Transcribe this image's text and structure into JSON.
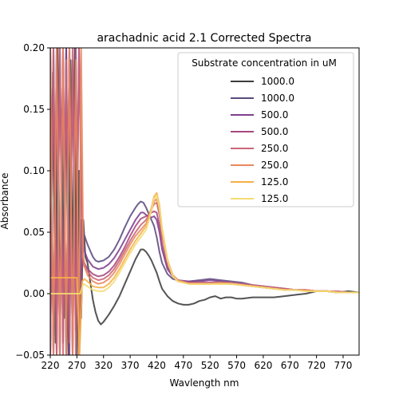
{
  "chart_data": {
    "type": "line",
    "title": "arachadnic acid 2.1 Corrected Spectra",
    "xlabel": "Wavlength nm",
    "ylabel": "Absorbance",
    "xlim": [
      220,
      800
    ],
    "ylim": [
      -0.05,
      0.2
    ],
    "xticks": [
      220,
      270,
      320,
      370,
      420,
      470,
      520,
      570,
      620,
      670,
      720,
      770
    ],
    "yticks": [
      -0.05,
      0.0,
      0.05,
      0.1,
      0.15,
      0.2
    ],
    "ytick_labels": [
      "−0.05",
      "0.00",
      "0.05",
      "0.10",
      "0.15",
      "0.20"
    ],
    "grid": false,
    "legend": {
      "title": "Substrate concentration in uM",
      "placement": "top-right"
    },
    "series": [
      {
        "name": "1000.0",
        "color": "#3c3c3c",
        "x": [
          220,
          225,
          230,
          234,
          238,
          242,
          246,
          250,
          254,
          258,
          262,
          266,
          270,
          274,
          278,
          282,
          286,
          290,
          295,
          300,
          305,
          310,
          315,
          320,
          330,
          340,
          350,
          360,
          370,
          380,
          390,
          395,
          400,
          405,
          410,
          415,
          420,
          425,
          430,
          440,
          450,
          460,
          470,
          480,
          490,
          500,
          510,
          520,
          530,
          540,
          550,
          560,
          570,
          580,
          600,
          620,
          640,
          660,
          680,
          700,
          720,
          740,
          760,
          780,
          800
        ],
        "y": [
          -0.05,
          0.18,
          -0.04,
          0.2,
          -0.05,
          0.15,
          -0.02,
          0.2,
          -0.05,
          0.19,
          -0.01,
          0.2,
          -0.05,
          0.1,
          -0.02,
          0.06,
          0.03,
          0.025,
          0.01,
          -0.005,
          -0.015,
          -0.022,
          -0.025,
          -0.023,
          -0.017,
          -0.01,
          -0.002,
          0.008,
          0.018,
          0.028,
          0.036,
          0.036,
          0.034,
          0.031,
          0.027,
          0.022,
          0.017,
          0.01,
          0.004,
          -0.002,
          -0.006,
          -0.008,
          -0.009,
          -0.009,
          -0.008,
          -0.006,
          -0.005,
          -0.003,
          -0.002,
          -0.004,
          -0.003,
          -0.003,
          -0.004,
          -0.004,
          -0.003,
          -0.003,
          -0.003,
          -0.002,
          -0.001,
          0.0,
          0.002,
          0.002,
          0.001,
          0.002,
          0.001
        ]
      },
      {
        "name": "1000.0",
        "color": "#5c4a7e",
        "x": [
          220,
          226,
          232,
          238,
          244,
          250,
          256,
          262,
          268,
          274,
          278,
          282,
          286,
          290,
          295,
          300,
          305,
          310,
          320,
          330,
          340,
          350,
          360,
          370,
          380,
          385,
          390,
          395,
          400,
          405,
          410,
          415,
          420,
          425,
          430,
          440,
          450,
          460,
          470,
          480,
          500,
          520,
          540,
          560,
          580,
          600,
          620,
          640,
          660,
          680,
          700,
          720,
          740,
          760,
          780,
          800
        ],
        "y": [
          0.2,
          -0.05,
          0.2,
          -0.05,
          0.2,
          -0.05,
          0.2,
          -0.05,
          0.19,
          -0.04,
          0.06,
          0.05,
          0.045,
          0.04,
          0.035,
          0.03,
          0.027,
          0.026,
          0.027,
          0.03,
          0.036,
          0.044,
          0.054,
          0.063,
          0.07,
          0.073,
          0.075,
          0.074,
          0.07,
          0.065,
          0.06,
          0.055,
          0.046,
          0.034,
          0.025,
          0.016,
          0.012,
          0.011,
          0.01,
          0.01,
          0.011,
          0.012,
          0.011,
          0.01,
          0.009,
          0.007,
          0.006,
          0.005,
          0.004,
          0.003,
          0.003,
          0.002,
          0.002,
          0.001,
          0.001,
          0.001
        ]
      },
      {
        "name": "500.0",
        "color": "#7e3f8f",
        "x": [
          220,
          226,
          232,
          238,
          244,
          250,
          256,
          262,
          268,
          274,
          280,
          284,
          290,
          300,
          310,
          320,
          330,
          340,
          350,
          360,
          370,
          380,
          385,
          390,
          395,
          400,
          405,
          410,
          415,
          420,
          425,
          430,
          440,
          450,
          460,
          480,
          500,
          520,
          540,
          560,
          580,
          600,
          620,
          640,
          660,
          680,
          700,
          720,
          740,
          760,
          780,
          800
        ],
        "y": [
          -0.05,
          0.2,
          -0.05,
          0.2,
          -0.04,
          0.2,
          -0.05,
          0.19,
          -0.03,
          0.2,
          0.05,
          0.035,
          0.028,
          0.022,
          0.02,
          0.021,
          0.024,
          0.029,
          0.036,
          0.044,
          0.052,
          0.06,
          0.063,
          0.066,
          0.066,
          0.064,
          0.063,
          0.062,
          0.063,
          0.06,
          0.05,
          0.036,
          0.02,
          0.014,
          0.011,
          0.01,
          0.01,
          0.011,
          0.01,
          0.009,
          0.008,
          0.007,
          0.006,
          0.005,
          0.004,
          0.003,
          0.003,
          0.002,
          0.002,
          0.001,
          0.001,
          0.001
        ]
      },
      {
        "name": "500.0",
        "color": "#a6487e",
        "x": [
          220,
          226,
          232,
          238,
          244,
          250,
          256,
          262,
          268,
          274,
          280,
          284,
          290,
          300,
          310,
          320,
          330,
          340,
          350,
          360,
          370,
          380,
          390,
          395,
          400,
          405,
          410,
          415,
          420,
          425,
          430,
          440,
          450,
          460,
          480,
          500,
          520,
          540,
          560,
          580,
          600,
          620,
          640,
          660,
          680,
          700,
          720,
          740,
          760,
          780,
          800
        ],
        "y": [
          0.2,
          -0.05,
          0.18,
          -0.05,
          0.2,
          -0.05,
          0.2,
          -0.05,
          0.2,
          -0.05,
          0.03,
          0.025,
          0.02,
          0.016,
          0.014,
          0.015,
          0.018,
          0.023,
          0.03,
          0.038,
          0.047,
          0.055,
          0.061,
          0.062,
          0.063,
          0.064,
          0.066,
          0.067,
          0.066,
          0.055,
          0.04,
          0.022,
          0.014,
          0.01,
          0.009,
          0.009,
          0.009,
          0.009,
          0.008,
          0.007,
          0.006,
          0.005,
          0.004,
          0.004,
          0.003,
          0.003,
          0.002,
          0.002,
          0.001,
          0.001,
          0.001
        ]
      },
      {
        "name": "250.0",
        "color": "#cc6479",
        "x": [
          220,
          226,
          232,
          238,
          244,
          250,
          256,
          262,
          268,
          274,
          280,
          284,
          290,
          300,
          310,
          320,
          330,
          340,
          350,
          360,
          370,
          380,
          390,
          400,
          405,
          410,
          415,
          420,
          425,
          430,
          440,
          450,
          460,
          480,
          500,
          520,
          540,
          560,
          580,
          600,
          620,
          640,
          660,
          680,
          700,
          720,
          740,
          760,
          780,
          800
        ],
        "y": [
          -0.05,
          0.2,
          -0.05,
          0.2,
          -0.05,
          0.19,
          -0.04,
          0.2,
          -0.05,
          0.2,
          0.03,
          0.022,
          0.018,
          0.013,
          0.011,
          0.012,
          0.015,
          0.02,
          0.027,
          0.035,
          0.043,
          0.05,
          0.056,
          0.06,
          0.064,
          0.069,
          0.073,
          0.074,
          0.064,
          0.048,
          0.026,
          0.015,
          0.011,
          0.009,
          0.009,
          0.009,
          0.009,
          0.009,
          0.008,
          0.007,
          0.006,
          0.005,
          0.004,
          0.003,
          0.003,
          0.002,
          0.002,
          0.002,
          0.001,
          0.001
        ]
      },
      {
        "name": "250.0",
        "color": "#e8875e",
        "x": [
          220,
          226,
          232,
          238,
          244,
          250,
          256,
          262,
          268,
          274,
          278,
          282,
          286,
          290,
          300,
          310,
          320,
          330,
          340,
          350,
          360,
          370,
          380,
          390,
          400,
          405,
          410,
          415,
          420,
          425,
          430,
          440,
          450,
          460,
          480,
          500,
          520,
          540,
          560,
          580,
          600,
          620,
          640,
          660,
          680,
          700,
          720,
          740,
          760,
          780,
          800
        ],
        "y": [
          0.2,
          -0.05,
          0.2,
          -0.05,
          0.2,
          -0.05,
          0.2,
          -0.05,
          0.19,
          -0.05,
          0.2,
          0.03,
          0.02,
          0.015,
          0.01,
          0.008,
          0.009,
          0.012,
          0.017,
          0.024,
          0.032,
          0.04,
          0.047,
          0.052,
          0.057,
          0.062,
          0.068,
          0.075,
          0.077,
          0.068,
          0.05,
          0.027,
          0.015,
          0.011,
          0.008,
          0.008,
          0.008,
          0.009,
          0.008,
          0.007,
          0.006,
          0.005,
          0.004,
          0.003,
          0.003,
          0.003,
          0.002,
          0.002,
          0.001,
          0.001,
          0.001
        ]
      },
      {
        "name": "125.0",
        "color": "#f6b04a",
        "x": [
          220,
          230,
          240,
          250,
          260,
          270,
          275,
          280,
          284,
          290,
          300,
          310,
          320,
          330,
          340,
          350,
          360,
          370,
          380,
          390,
          400,
          405,
          410,
          415,
          420,
          425,
          430,
          440,
          450,
          460,
          480,
          500,
          520,
          540,
          560,
          580,
          600,
          620,
          640,
          660,
          680,
          700,
          720,
          740,
          760,
          780,
          800
        ],
        "y": [
          0.013,
          0.013,
          0.013,
          0.013,
          0.013,
          0.013,
          -0.05,
          0.01,
          0.012,
          0.01,
          0.006,
          0.005,
          0.005,
          0.008,
          0.013,
          0.02,
          0.028,
          0.036,
          0.043,
          0.049,
          0.055,
          0.062,
          0.07,
          0.079,
          0.082,
          0.072,
          0.053,
          0.028,
          0.015,
          0.01,
          0.008,
          0.008,
          0.008,
          0.008,
          0.008,
          0.007,
          0.006,
          0.005,
          0.004,
          0.003,
          0.003,
          0.002,
          0.002,
          0.002,
          0.001,
          0.001,
          0.001
        ]
      },
      {
        "name": "125.0",
        "color": "#f2dc74",
        "x": [
          220,
          230,
          240,
          250,
          260,
          270,
          276,
          282,
          290,
          300,
          310,
          320,
          330,
          340,
          350,
          360,
          370,
          380,
          390,
          400,
          405,
          410,
          415,
          420,
          425,
          430,
          440,
          450,
          460,
          480,
          500,
          520,
          540,
          560,
          580,
          600,
          620,
          640,
          660,
          680,
          700,
          720,
          740,
          760,
          780,
          800
        ],
        "y": [
          0.0,
          0.0,
          0.0,
          0.0,
          0.0,
          0.0,
          0.0,
          0.008,
          0.006,
          0.003,
          0.002,
          0.002,
          0.005,
          0.01,
          0.017,
          0.025,
          0.033,
          0.04,
          0.046,
          0.052,
          0.059,
          0.068,
          0.077,
          0.08,
          0.07,
          0.052,
          0.027,
          0.014,
          0.01,
          0.008,
          0.008,
          0.008,
          0.008,
          0.008,
          0.007,
          0.006,
          0.005,
          0.004,
          0.003,
          0.003,
          0.002,
          0.002,
          0.002,
          0.001,
          0.001,
          0.001
        ]
      }
    ]
  }
}
